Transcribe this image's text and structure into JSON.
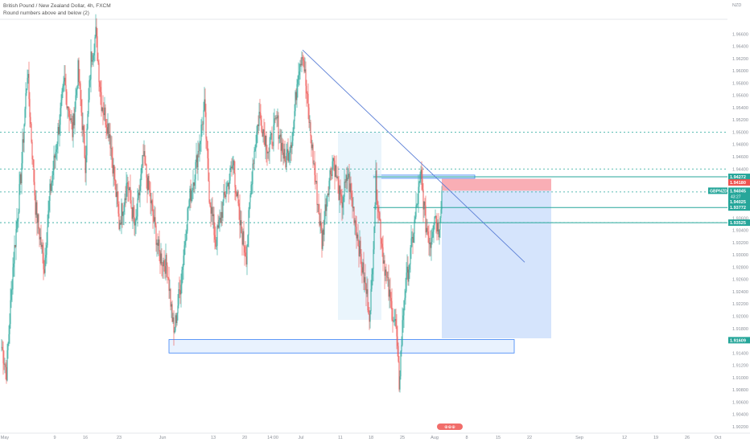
{
  "chart_data": {
    "type": "candlestick",
    "title": "British Pound / New Zealand Dollar, 4h, FXCM",
    "subtitle": "Round numbers above and below (2)",
    "currency": "NZD",
    "symbol": "GBPNZD",
    "y_range": [
      1.9012,
      1.9684
    ],
    "y_ticks": [
      "1.96600",
      "1.96400",
      "1.96200",
      "1.96000",
      "1.95800",
      "1.95600",
      "1.95400",
      "1.95200",
      "1.95000",
      "1.94800",
      "1.94600",
      "1.94400",
      "1.94200",
      "1.94000",
      "1.93800",
      "1.93600",
      "1.93400",
      "1.93200",
      "1.93000",
      "1.92800",
      "1.92600",
      "1.92400",
      "1.92200",
      "1.92000",
      "1.91800",
      "1.91600",
      "1.91400",
      "1.91200",
      "1.91000",
      "1.90800",
      "1.90600",
      "1.90400",
      "1.90200"
    ],
    "x_ticks": [
      {
        "label": "May",
        "i": 4
      },
      {
        "label": "9",
        "i": 66
      },
      {
        "label": "16",
        "i": 104
      },
      {
        "label": "23",
        "i": 146
      },
      {
        "label": "Jun",
        "i": 200
      },
      {
        "label": "13",
        "i": 263
      },
      {
        "label": "20",
        "i": 302
      },
      {
        "label": "14:00",
        "i": 337
      },
      {
        "label": "Jul",
        "i": 372
      },
      {
        "label": "11",
        "i": 421
      },
      {
        "label": "18",
        "i": 459
      },
      {
        "label": "25",
        "i": 498
      },
      {
        "label": "Aug",
        "i": 538
      },
      {
        "label": "8",
        "i": 578
      },
      {
        "label": "15",
        "i": 617
      },
      {
        "label": "22",
        "i": 656
      },
      {
        "label": "Sep",
        "i": 718
      },
      {
        "label": "12",
        "i": 774
      },
      {
        "label": "19",
        "i": 813
      },
      {
        "label": "26",
        "i": 852
      },
      {
        "label": "Oct",
        "i": 890
      }
    ],
    "last_index": 547,
    "price_labels": [
      {
        "value": 1.94272,
        "text": "1.94272",
        "color": "#26a69a"
      },
      {
        "value": 1.9418,
        "text": "1.94180",
        "color": "#ef5350"
      },
      {
        "value": 1.94045,
        "text": "1.94045",
        "color": "#26a69a",
        "name": "GBPNZD",
        "countdown": "43:27"
      },
      {
        "value": 1.94025,
        "text": "1.94025",
        "color": "#26a69a"
      },
      {
        "value": 1.93772,
        "text": "1.93772",
        "color": "#26a69a"
      },
      {
        "value": 1.93525,
        "text": "1.93525",
        "color": "#26a69a"
      },
      {
        "value": 1.91609,
        "text": "1.91609",
        "color": "#26a69a"
      }
    ],
    "levels": {
      "dashed_green": [
        1.95,
        1.944,
        1.94025,
        1.93525
      ],
      "solid_teal": [
        1.94272,
        1.93772,
        1.93525
      ]
    },
    "trendline": {
      "from": {
        "i": 374,
        "y": 1.9634
      },
      "to": {
        "i": 650,
        "y": 1.9288
      }
    },
    "zones": [
      {
        "kind": "demand",
        "i0": 208,
        "i1": 637,
        "y0": 1.9162,
        "y1": 1.914
      },
      {
        "kind": "resistance",
        "i0": 462,
        "i1": 588,
        "y0": 1.943,
        "y1": 1.9425
      },
      {
        "kind": "session",
        "i0": 418,
        "i1": 472,
        "y0": 1.95,
        "y1": 1.9194
      }
    ],
    "position": {
      "i0": 547,
      "i1": 683,
      "entry": 1.94045,
      "stop": 1.9424,
      "target": 1.9164
    },
    "swing_points": [
      {
        "i": 0,
        "y": 1.915
      },
      {
        "i": 6,
        "y": 1.911
      },
      {
        "i": 14,
        "y": 1.928
      },
      {
        "i": 24,
        "y": 1.943
      },
      {
        "i": 32,
        "y": 1.96
      },
      {
        "i": 42,
        "y": 1.938
      },
      {
        "i": 53,
        "y": 1.928
      },
      {
        "i": 60,
        "y": 1.94
      },
      {
        "i": 68,
        "y": 1.948
      },
      {
        "i": 78,
        "y": 1.958
      },
      {
        "i": 88,
        "y": 1.95
      },
      {
        "i": 95,
        "y": 1.96
      },
      {
        "i": 104,
        "y": 1.945
      },
      {
        "i": 111,
        "y": 1.962
      },
      {
        "i": 117,
        "y": 1.966
      },
      {
        "i": 124,
        "y": 1.955
      },
      {
        "i": 134,
        "y": 1.95
      },
      {
        "i": 146,
        "y": 1.935
      },
      {
        "i": 156,
        "y": 1.942
      },
      {
        "i": 166,
        "y": 1.934
      },
      {
        "i": 176,
        "y": 1.946
      },
      {
        "i": 186,
        "y": 1.938
      },
      {
        "i": 196,
        "y": 1.93
      },
      {
        "i": 206,
        "y": 1.928
      },
      {
        "i": 214,
        "y": 1.917
      },
      {
        "i": 222,
        "y": 1.925
      },
      {
        "i": 232,
        "y": 1.938
      },
      {
        "i": 242,
        "y": 1.945
      },
      {
        "i": 252,
        "y": 1.954
      },
      {
        "i": 258,
        "y": 1.94
      },
      {
        "i": 266,
        "y": 1.932
      },
      {
        "i": 278,
        "y": 1.94
      },
      {
        "i": 288,
        "y": 1.945
      },
      {
        "i": 296,
        "y": 1.935
      },
      {
        "i": 304,
        "y": 1.93
      },
      {
        "i": 312,
        "y": 1.945
      },
      {
        "i": 320,
        "y": 1.953
      },
      {
        "i": 332,
        "y": 1.947
      },
      {
        "i": 342,
        "y": 1.952
      },
      {
        "i": 352,
        "y": 1.945
      },
      {
        "i": 362,
        "y": 1.95
      },
      {
        "i": 368,
        "y": 1.96
      },
      {
        "i": 374,
        "y": 1.9634
      },
      {
        "i": 382,
        "y": 1.952
      },
      {
        "i": 390,
        "y": 1.942
      },
      {
        "i": 398,
        "y": 1.932
      },
      {
        "i": 404,
        "y": 1.94
      },
      {
        "i": 412,
        "y": 1.946
      },
      {
        "i": 422,
        "y": 1.938
      },
      {
        "i": 430,
        "y": 1.943
      },
      {
        "i": 440,
        "y": 1.935
      },
      {
        "i": 448,
        "y": 1.928
      },
      {
        "i": 458,
        "y": 1.92
      },
      {
        "i": 465,
        "y": 1.942
      },
      {
        "i": 474,
        "y": 1.93
      },
      {
        "i": 482,
        "y": 1.923
      },
      {
        "i": 490,
        "y": 1.918
      },
      {
        "i": 494,
        "y": 1.909
      },
      {
        "i": 500,
        "y": 1.923
      },
      {
        "i": 508,
        "y": 1.93
      },
      {
        "i": 516,
        "y": 1.938
      },
      {
        "i": 521,
        "y": 1.943
      },
      {
        "i": 527,
        "y": 1.935
      },
      {
        "i": 533,
        "y": 1.932
      },
      {
        "i": 538,
        "y": 1.937
      },
      {
        "i": 543,
        "y": 1.934
      },
      {
        "i": 547,
        "y": 1.94045
      }
    ]
  },
  "footer": {
    "badge_text": "⊕⊕⊕"
  }
}
